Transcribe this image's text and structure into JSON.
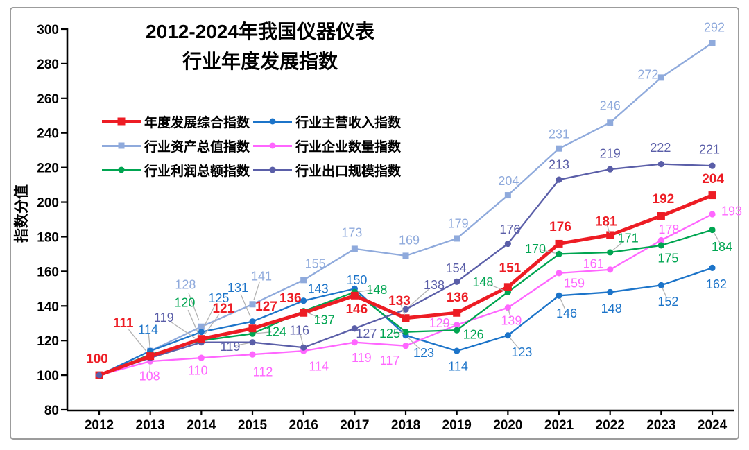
{
  "chart_data": {
    "type": "line",
    "title_lines": [
      "2012-2024年我国仪器仪表",
      "行业年度发展指数"
    ],
    "ylabel": "指数分值",
    "ylim": [
      80,
      300
    ],
    "ytick_step": 20,
    "grid": false,
    "legend_position": "upper-left, 2 columns x 3 rows",
    "categories": [
      "2012",
      "2013",
      "2014",
      "2015",
      "2016",
      "2017",
      "2018",
      "2019",
      "2020",
      "2021",
      "2022",
      "2023",
      "2024"
    ],
    "style": {
      "background": "#ffffff",
      "axis_color": "#000000",
      "frame_color": "#9c9c9c",
      "leader_color": "#b3b3b3",
      "tick_label_color": "#000000"
    },
    "draw_order": [
      2,
      1,
      3,
      4,
      5,
      0
    ],
    "series": [
      {
        "key": "composite",
        "name": "年度发展综合指数",
        "color": "#ed1c24",
        "marker": "square",
        "line_width": 5,
        "bold_labels": true,
        "values": [
          100,
          111,
          121,
          127,
          136,
          146,
          133,
          136,
          151,
          176,
          181,
          192,
          204
        ],
        "labels": [
          "100",
          "111",
          "121",
          "127",
          "136",
          "146",
          "133",
          "136",
          "151",
          "176",
          "181",
          "192",
          "204"
        ],
        "label_offsets": [
          [
            -3,
            -24,
            0
          ],
          [
            -39,
            -48,
            1
          ],
          [
            32,
            -44,
            1
          ],
          [
            20,
            -32,
            0
          ],
          [
            -19,
            -22,
            0
          ],
          [
            3,
            19,
            0
          ],
          [
            -9,
            -25,
            1
          ],
          [
            1,
            -23,
            0
          ],
          [
            3,
            -28,
            0
          ],
          [
            2,
            -25,
            0
          ],
          [
            -6,
            -20,
            1
          ],
          [
            3,
            -25,
            0
          ],
          [
            1,
            -24,
            0
          ]
        ]
      },
      {
        "key": "revenue",
        "name": "行业主营收入指数",
        "color": "#1c74c9",
        "marker": "circle",
        "line_width": 2.3,
        "bold_labels": false,
        "values": [
          100,
          114,
          125,
          131,
          143,
          150,
          123,
          114,
          123,
          146,
          148,
          152,
          162
        ],
        "labels": [
          null,
          "114",
          "125",
          "131",
          "143",
          "150",
          "123",
          "114",
          "123",
          "146",
          "148",
          "152",
          "162"
        ],
        "label_offsets": [
          null,
          [
            -3,
            -31,
            1
          ],
          [
            25,
            -49,
            1
          ],
          [
            -21,
            -49,
            1
          ],
          [
            21,
            -18,
            0
          ],
          [
            3,
            -13,
            0
          ],
          [
            26,
            25,
            1
          ],
          [
            2,
            22,
            0
          ],
          [
            20,
            24,
            1
          ],
          [
            11,
            25,
            1
          ],
          [
            2,
            23,
            0
          ],
          [
            10,
            23,
            1
          ],
          [
            6,
            23,
            0
          ]
        ]
      },
      {
        "key": "assets",
        "name": "行业资产总值指数",
        "color": "#8faadc",
        "marker": "square",
        "line_width": 2.3,
        "bold_labels": false,
        "values": [
          100,
          114,
          128,
          141,
          155,
          173,
          169,
          179,
          204,
          231,
          246,
          272,
          292
        ],
        "labels": [
          null,
          null,
          "128",
          "141",
          "155",
          "173",
          "169",
          "179",
          "204",
          "231",
          "246",
          "272",
          "292"
        ],
        "label_offsets": [
          null,
          null,
          [
            -23,
            -61,
            1
          ],
          [
            13,
            -41,
            1
          ],
          [
            17,
            -24,
            0
          ],
          [
            -4,
            -24,
            0
          ],
          [
            5,
            -23,
            0
          ],
          [
            2,
            -22,
            0
          ],
          [
            1,
            -21,
            0
          ],
          [
            0,
            -21,
            0
          ],
          [
            0,
            -25,
            0
          ],
          [
            -19,
            -5,
            0
          ],
          [
            3,
            -23,
            0
          ]
        ]
      },
      {
        "key": "enterprises",
        "name": "行业企业数量指数",
        "color": "#ff66ff",
        "marker": "circle",
        "line_width": 2.3,
        "bold_labels": false,
        "values": [
          100,
          108,
          110,
          112,
          114,
          119,
          117,
          129,
          139,
          159,
          161,
          178,
          193
        ],
        "labels": [
          null,
          "108",
          "110",
          "112",
          "114",
          "119",
          "117",
          "129",
          "139",
          "159",
          "161",
          "178",
          "193"
        ],
        "label_offsets": [
          null,
          [
            -1,
            21,
            1
          ],
          [
            -5,
            18,
            0
          ],
          [
            15,
            25,
            0
          ],
          [
            22,
            22,
            0
          ],
          [
            10,
            22,
            0
          ],
          [
            -23,
            21,
            0
          ],
          [
            -25,
            -3,
            1
          ],
          [
            5,
            18,
            1
          ],
          [
            22,
            14,
            0
          ],
          [
            -24,
            -9,
            0
          ],
          [
            11,
            -16,
            0
          ],
          [
            28,
            -5,
            0
          ]
        ]
      },
      {
        "key": "profit",
        "name": "行业利润总额指数",
        "color": "#00a551",
        "marker": "circle",
        "line_width": 2.3,
        "bold_labels": false,
        "values": [
          100,
          112,
          120,
          124,
          137,
          148,
          125,
          126,
          148,
          170,
          171,
          175,
          184
        ],
        "labels": [
          null,
          null,
          "120",
          "124",
          "137",
          "148",
          "125",
          "126",
          "148",
          "170",
          "171",
          "175",
          "184"
        ],
        "label_offsets": [
          null,
          null,
          [
            -24,
            -55,
            1
          ],
          [
            34,
            -3,
            1
          ],
          [
            30,
            12,
            1
          ],
          [
            32,
            -4,
            1
          ],
          [
            -23,
            2,
            1
          ],
          [
            24,
            6,
            0
          ],
          [
            -36,
            -15,
            1
          ],
          [
            -34,
            -8,
            1
          ],
          [
            26,
            -21,
            1
          ],
          [
            10,
            18,
            0
          ],
          [
            14,
            24,
            1
          ]
        ]
      },
      {
        "key": "export",
        "name": "行业出口规模指数",
        "color": "#5a5ea8",
        "marker": "circle",
        "line_width": 2.3,
        "bold_labels": false,
        "values": [
          100,
          110,
          119,
          119,
          116,
          127,
          138,
          154,
          176,
          213,
          219,
          222,
          221
        ],
        "labels": [
          null,
          null,
          "119",
          "119",
          "116",
          "127",
          "138",
          "154",
          "176",
          "213",
          "219",
          "222",
          "221"
        ],
        "label_offsets": [
          null,
          null,
          [
            -54,
            -36,
            1
          ],
          [
            -32,
            6,
            1
          ],
          [
            -6,
            -25,
            1
          ],
          [
            17,
            7,
            0
          ],
          [
            41,
            -36,
            1
          ],
          [
            -1,
            -20,
            0
          ],
          [
            3,
            -21,
            0
          ],
          [
            0,
            -22,
            0
          ],
          [
            0,
            -23,
            0
          ],
          [
            -1,
            -24,
            0
          ],
          [
            -4,
            -24,
            0
          ]
        ]
      }
    ]
  }
}
